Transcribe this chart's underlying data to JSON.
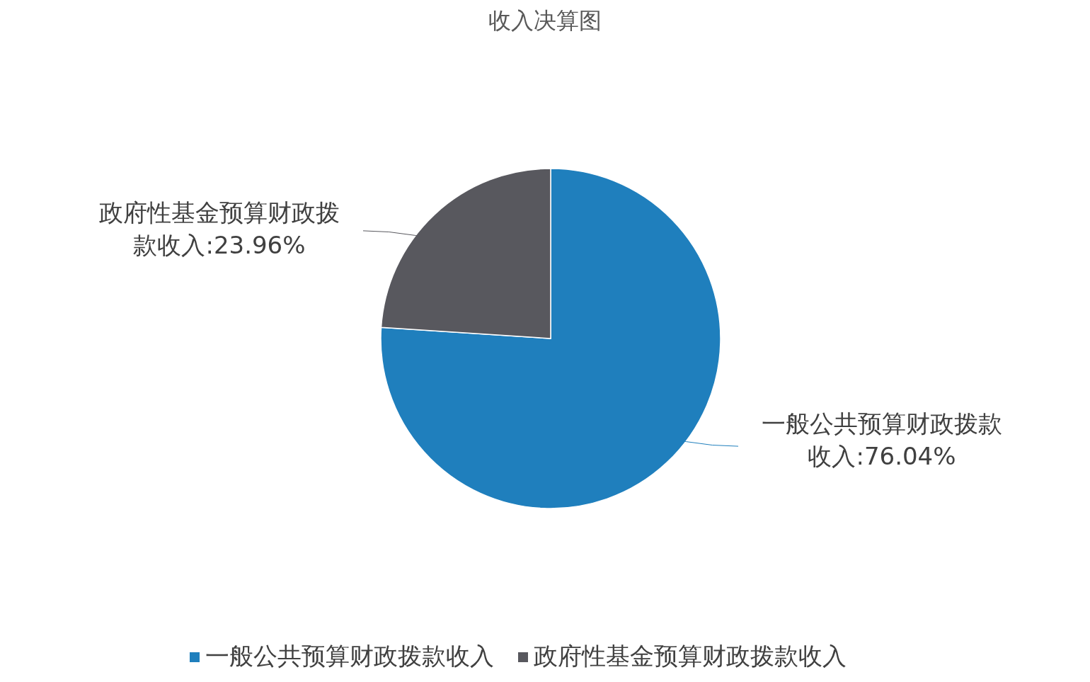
{
  "chart_data": {
    "type": "pie",
    "title": "收入决算图",
    "categories": [
      "一般公共预算财政拨款收入",
      "政府性基金预算财政拨款收入"
    ],
    "values": [
      76.04,
      23.96
    ],
    "colors": [
      "#1f7fbd",
      "#58585e"
    ],
    "value_labels": [
      "一般公共预算财政拨款收入:76.04%",
      "政府性基金预算财政拨款收入:23.96%"
    ],
    "legend": "bottom"
  }
}
